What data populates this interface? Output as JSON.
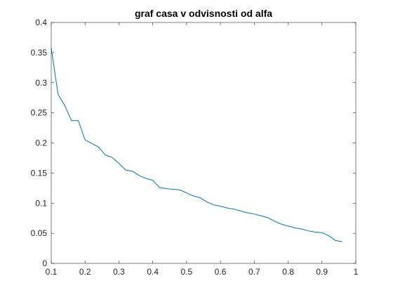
{
  "chart_data": {
    "type": "line",
    "title": "graf casa v odvisnosti od alfa",
    "xlabel": "",
    "ylabel": "",
    "xlim": [
      0.1,
      1
    ],
    "ylim": [
      0,
      0.4
    ],
    "x_ticks": [
      "0.1",
      "0.2",
      "0.3",
      "0.4",
      "0.5",
      "0.6",
      "0.7",
      "0.8",
      "0.9",
      "1"
    ],
    "y_ticks": [
      "0",
      "0.05",
      "0.1",
      "0.15",
      "0.2",
      "0.25",
      "0.3",
      "0.35",
      "0.4"
    ],
    "x_tick_values": [
      0.1,
      0.2,
      0.3,
      0.4,
      0.5,
      0.6,
      0.7,
      0.8,
      0.9,
      1.0
    ],
    "y_tick_values": [
      0,
      0.05,
      0.1,
      0.15,
      0.2,
      0.25,
      0.3,
      0.35,
      0.4
    ],
    "grid": false,
    "legend": "none",
    "series": [
      {
        "color": "#0072BD",
        "x": [
          0.1,
          0.12,
          0.14,
          0.16,
          0.18,
          0.2,
          0.22,
          0.24,
          0.26,
          0.27,
          0.28,
          0.3,
          0.32,
          0.34,
          0.36,
          0.38,
          0.4,
          0.42,
          0.44,
          0.46,
          0.48,
          0.5,
          0.52,
          0.54,
          0.56,
          0.58,
          0.6,
          0.62,
          0.64,
          0.66,
          0.68,
          0.7,
          0.72,
          0.74,
          0.76,
          0.78,
          0.8,
          0.82,
          0.84,
          0.86,
          0.88,
          0.9,
          0.92,
          0.94,
          0.96
        ],
        "y": [
          0.358,
          0.281,
          0.262,
          0.237,
          0.237,
          0.205,
          0.199,
          0.193,
          0.18,
          0.178,
          0.176,
          0.166,
          0.155,
          0.153,
          0.146,
          0.141,
          0.138,
          0.126,
          0.124,
          0.123,
          0.122,
          0.117,
          0.112,
          0.109,
          0.102,
          0.097,
          0.095,
          0.092,
          0.09,
          0.087,
          0.084,
          0.082,
          0.079,
          0.076,
          0.07,
          0.065,
          0.062,
          0.059,
          0.057,
          0.054,
          0.052,
          0.051,
          0.046,
          0.038,
          0.036
        ]
      }
    ]
  }
}
